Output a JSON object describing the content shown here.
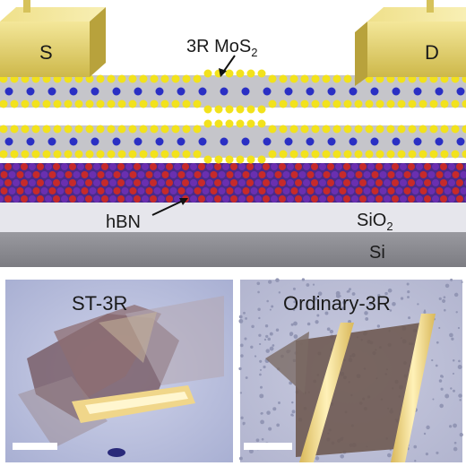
{
  "device": {
    "source_label": "S",
    "drain_label": "D",
    "mos2_label": "3R MoS",
    "mos2_subscript": "2",
    "hbn_label": "hBN",
    "sio2_label": "SiO",
    "sio2_subscript": "2",
    "si_label": "Si"
  },
  "micrographs": [
    {
      "title": "ST-3R"
    },
    {
      "title": "Ordinary-3R"
    }
  ],
  "colors": {
    "electrode": "#e6d36a",
    "sulfur": "#f2e21c",
    "molybdenum": "#2a2fc4",
    "boron": "#6a2fb0",
    "nitrogen": "#c62a2a",
    "sio2": "#e4e4ea",
    "si": "#8a8a8f"
  }
}
